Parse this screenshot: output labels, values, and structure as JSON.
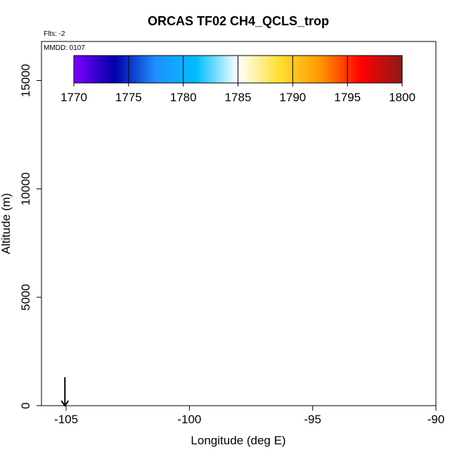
{
  "chart_data": {
    "type": "scatter",
    "title": "ORCAS TF02 CH4_QCLS_trop",
    "flts_note": "Flts: -2",
    "mmdd_note": "MMDD: 0107",
    "xlabel": "Longitude (deg E)",
    "ylabel": "Altitude (m)",
    "xlim": [
      -106,
      -90
    ],
    "ylim": [
      0,
      16800
    ],
    "xticks": [
      -105,
      -100,
      -95,
      -90
    ],
    "xtick_labels": [
      "-105",
      "-100",
      "-95",
      "-90"
    ],
    "yticks": [
      0,
      5000,
      10000,
      15000
    ],
    "ytick_labels": [
      "0",
      "5000",
      "10000",
      "15000"
    ],
    "grid": false,
    "points": [],
    "marker": {
      "type": "down-arrow",
      "x": -105.05,
      "y_top": 600,
      "y_bottom": 0
    },
    "colorbar": {
      "placement": "top-inside",
      "min": 1770,
      "max": 1800,
      "ticks": [
        1770,
        1775,
        1780,
        1785,
        1790,
        1795,
        1800
      ],
      "tick_labels": [
        "1770",
        "1775",
        "1780",
        "1785",
        "1790",
        "1795",
        "1800"
      ],
      "colors": [
        "#7f00ff",
        "#0000a8",
        "#1e90ff",
        "#00bfff",
        "#ffffff",
        "#ffe033",
        "#ff9900",
        "#ff0000",
        "#8b1a1a"
      ]
    }
  }
}
